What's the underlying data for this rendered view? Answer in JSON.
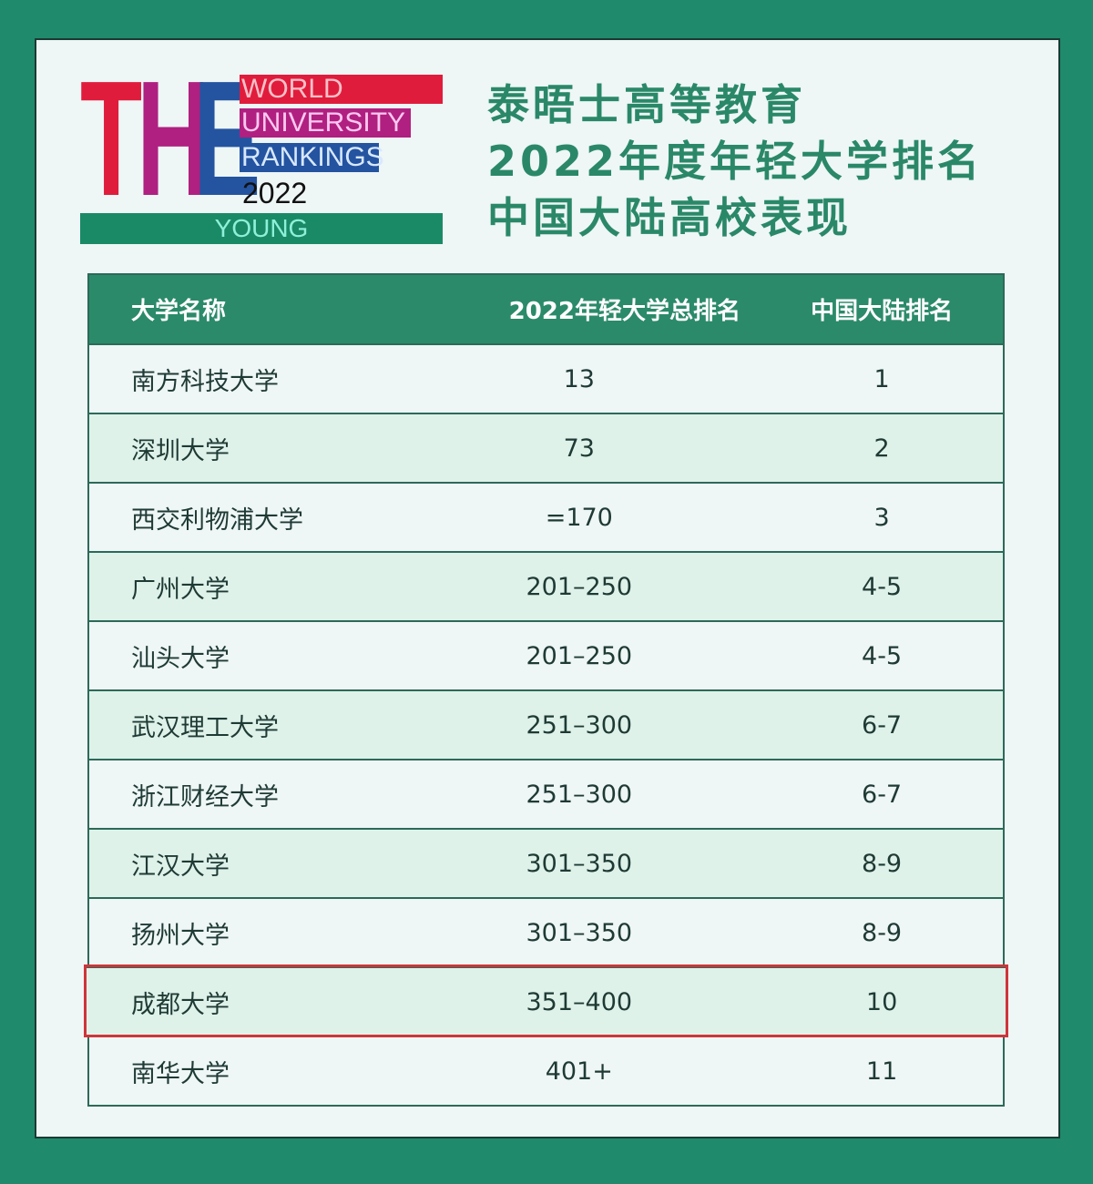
{
  "logo": {
    "the_letters": [
      "T",
      "H",
      "E"
    ],
    "line1": "WORLD",
    "line2": "UNIVERSITY",
    "line3": "RANKINGS",
    "year": "2022",
    "edition": "YOUNG",
    "colors": {
      "red": "#e01c3c",
      "magenta": "#b02080",
      "blue": "#2454a0",
      "green": "#1a8a66"
    }
  },
  "title": [
    "泰晤士高等教育",
    "2022年度年轻大学排名",
    "中国大陆高校表现"
  ],
  "table": {
    "headers": [
      "大学名称",
      "2022年轻大学总排名",
      "中国大陆排名"
    ],
    "highlight_color": "#d0343a",
    "rows": [
      {
        "name": "南方科技大学",
        "overall": "13",
        "mainland": "1"
      },
      {
        "name": "深圳大学",
        "overall": "73",
        "mainland": "2"
      },
      {
        "name": "西交利物浦大学",
        "overall": "=170",
        "mainland": "3"
      },
      {
        "name": "广州大学",
        "overall": "201–250",
        "mainland": "4-5"
      },
      {
        "name": "汕头大学",
        "overall": "201–250",
        "mainland": "4-5"
      },
      {
        "name": "武汉理工大学",
        "overall": "251–300",
        "mainland": "6-7"
      },
      {
        "name": "浙江财经大学",
        "overall": "251–300",
        "mainland": "6-7"
      },
      {
        "name": "江汉大学",
        "overall": "301–350",
        "mainland": "8-9"
      },
      {
        "name": "扬州大学",
        "overall": "301–350",
        "mainland": "8-9"
      },
      {
        "name": "成都大学",
        "overall": "351–400",
        "mainland": "10",
        "highlighted": true
      },
      {
        "name": "南华大学",
        "overall": "401+",
        "mainland": "11"
      }
    ]
  }
}
